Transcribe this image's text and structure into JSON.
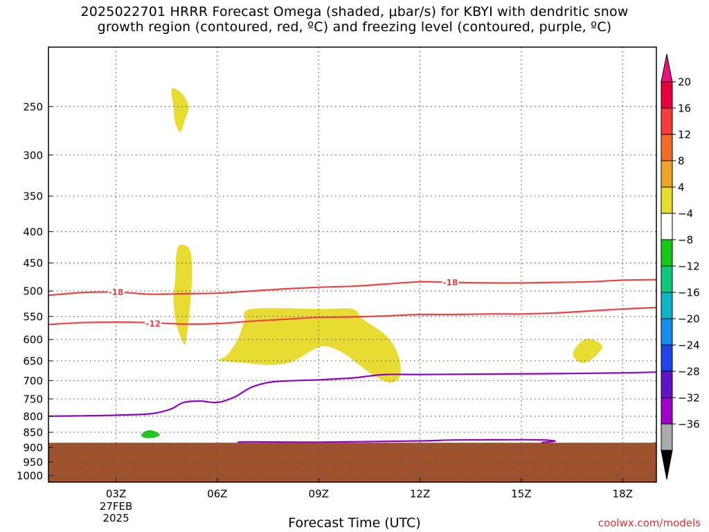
{
  "chart_data": {
    "type": "time-height cross section",
    "title": "2025022701 HRRR Forecast Omega (shaded, μbar/s) for KBYI with dendritic snow\ngrowth region (contoured, red, ºC) and freezing level (contoured, purple, ºC)",
    "xlabel": "Forecast Time (UTC)",
    "ylabel": "",
    "x_ticks": [
      {
        "hour": 3,
        "label": "03Z",
        "sublabels": [
          "27FEB",
          "2025"
        ]
      },
      {
        "hour": 6,
        "label": "06Z"
      },
      {
        "hour": 9,
        "label": "09Z"
      },
      {
        "hour": 12,
        "label": "12Z"
      },
      {
        "hour": 15,
        "label": "15Z"
      },
      {
        "hour": 18,
        "label": "18Z"
      }
    ],
    "xlim_hours": [
      1,
      19
    ],
    "y_ticks": [
      250,
      300,
      350,
      400,
      450,
      500,
      550,
      600,
      650,
      700,
      750,
      800,
      850,
      900,
      950,
      1000
    ],
    "ylim_hPa": [
      200,
      1025
    ],
    "y_log": true,
    "grid": true,
    "terrain_top_hPa": 882,
    "terrain_color": "#a0522d",
    "omega_regions": [
      {
        "value_range": [
          4,
          8
        ],
        "color": "#e8dc32",
        "polygon": [
          [
            4.65,
            234
          ],
          [
            4.95,
            238
          ],
          [
            5.15,
            250
          ],
          [
            5.05,
            262
          ],
          [
            4.9,
            275
          ],
          [
            4.75,
            265
          ],
          [
            4.7,
            250
          ]
        ]
      },
      {
        "value_range": [
          4,
          8
        ],
        "color": "#e8dc32",
        "polygon": [
          [
            4.75,
            480
          ],
          [
            4.8,
            430
          ],
          [
            4.95,
            420
          ],
          [
            5.2,
            430
          ],
          [
            5.25,
            470
          ],
          [
            5.2,
            520
          ],
          [
            5.15,
            560
          ],
          [
            5.05,
            610
          ],
          [
            4.95,
            600
          ],
          [
            4.8,
            570
          ],
          [
            4.7,
            520
          ]
        ]
      },
      {
        "value_range": [
          4,
          8
        ],
        "color": "#e8dc32",
        "polygon": [
          [
            6.1,
            645
          ],
          [
            6.3,
            635
          ],
          [
            6.6,
            600
          ],
          [
            6.8,
            560
          ],
          [
            7.0,
            535
          ],
          [
            9.0,
            535
          ],
          [
            10.0,
            535
          ],
          [
            10.3,
            555
          ],
          [
            10.9,
            585
          ],
          [
            11.2,
            610
          ],
          [
            11.4,
            650
          ],
          [
            11.4,
            690
          ],
          [
            11.1,
            705
          ],
          [
            10.6,
            685
          ],
          [
            10.2,
            660
          ],
          [
            9.7,
            630
          ],
          [
            9.2,
            615
          ],
          [
            8.8,
            625
          ],
          [
            8.5,
            640
          ],
          [
            8.1,
            655
          ],
          [
            7.5,
            660
          ],
          [
            6.8,
            655
          ],
          [
            6.1,
            650
          ]
        ]
      },
      {
        "value_range": [
          4,
          8
        ],
        "color": "#e8dc32",
        "polygon": [
          [
            16.6,
            620
          ],
          [
            16.95,
            598
          ],
          [
            17.4,
            615
          ],
          [
            17.1,
            645
          ],
          [
            16.8,
            655
          ],
          [
            16.55,
            640
          ]
        ]
      },
      {
        "value_range": [
          -8,
          -4
        ],
        "color": "#20c820",
        "polygon": [
          [
            3.75,
            858
          ],
          [
            3.9,
            845
          ],
          [
            4.1,
            845
          ],
          [
            4.3,
            858
          ],
          [
            4.1,
            868
          ],
          [
            3.85,
            868
          ]
        ]
      }
    ],
    "dgz_contours": [
      {
        "label": "-18",
        "color": "#f04040",
        "points": [
          [
            1,
            508
          ],
          [
            2,
            503
          ],
          [
            3,
            502
          ],
          [
            4,
            506
          ],
          [
            5,
            505
          ],
          [
            6,
            504
          ],
          [
            7,
            500
          ],
          [
            8,
            496
          ],
          [
            9,
            493
          ],
          [
            10,
            491
          ],
          [
            11,
            487
          ],
          [
            12,
            483
          ],
          [
            13,
            484
          ],
          [
            14,
            485
          ],
          [
            15,
            485
          ],
          [
            16,
            484
          ],
          [
            17,
            483
          ],
          [
            18,
            480
          ],
          [
            19,
            479
          ]
        ],
        "label_positions": [
          [
            3,
            502
          ],
          [
            12.9,
            484
          ]
        ]
      },
      {
        "label": "-12",
        "color": "#f04040",
        "points": [
          [
            1,
            567
          ],
          [
            2,
            563
          ],
          [
            3,
            562
          ],
          [
            4,
            563
          ],
          [
            5,
            566
          ],
          [
            6,
            565
          ],
          [
            7,
            560
          ],
          [
            8,
            556
          ],
          [
            9,
            552
          ],
          [
            10,
            551
          ],
          [
            11,
            549
          ],
          [
            12,
            546
          ],
          [
            13,
            546
          ],
          [
            14,
            545
          ],
          [
            15,
            545
          ],
          [
            16,
            543
          ],
          [
            17,
            539
          ],
          [
            18,
            535
          ],
          [
            19,
            532
          ]
        ],
        "label_positions": [
          [
            4.1,
            565
          ]
        ]
      }
    ],
    "freezing_level": {
      "label": "0",
      "color": "#9000c8",
      "main": [
        [
          1,
          800
        ],
        [
          2,
          799
        ],
        [
          3,
          797
        ],
        [
          4,
          793
        ],
        [
          4.6,
          780
        ],
        [
          5,
          760
        ],
        [
          5.5,
          756
        ],
        [
          6,
          760
        ],
        [
          6.5,
          745
        ],
        [
          7,
          718
        ],
        [
          7.5,
          705
        ],
        [
          8,
          701
        ],
        [
          9,
          698
        ],
        [
          10,
          693
        ],
        [
          10.5,
          688
        ],
        [
          11,
          684
        ],
        [
          12,
          684
        ],
        [
          14,
          683
        ],
        [
          16,
          682
        ],
        [
          18,
          680
        ],
        [
          19,
          678
        ]
      ],
      "near_surface": [
        [
          6.6,
          882
        ],
        [
          7.0,
          881
        ],
        [
          9.0,
          882
        ],
        [
          12,
          878
        ],
        [
          13,
          875
        ],
        [
          15,
          874
        ],
        [
          15.7,
          875
        ],
        [
          16.0,
          879
        ],
        [
          15.6,
          883
        ]
      ]
    },
    "colorbar": {
      "labels": [
        "20",
        "16",
        "12",
        "8",
        "4",
        "−4",
        "−8",
        "−12",
        "−16",
        "−20",
        "−24",
        "−28",
        "−32",
        "−36"
      ],
      "colors_top_to_bottom": [
        "#e8003c",
        "#f53c3c",
        "#f06d2a",
        "#f0a22a",
        "#e8dc32",
        "#ffffff",
        "#18c818",
        "#10c87c",
        "#10b4c8",
        "#148ceb",
        "#1e46e6",
        "#6414c8",
        "#a000c8",
        "#aaaaaa"
      ],
      "top_arrow_color": "#e6147c",
      "bottom_arrow_color": "#000000"
    }
  },
  "credit": "coolwx.com/models"
}
